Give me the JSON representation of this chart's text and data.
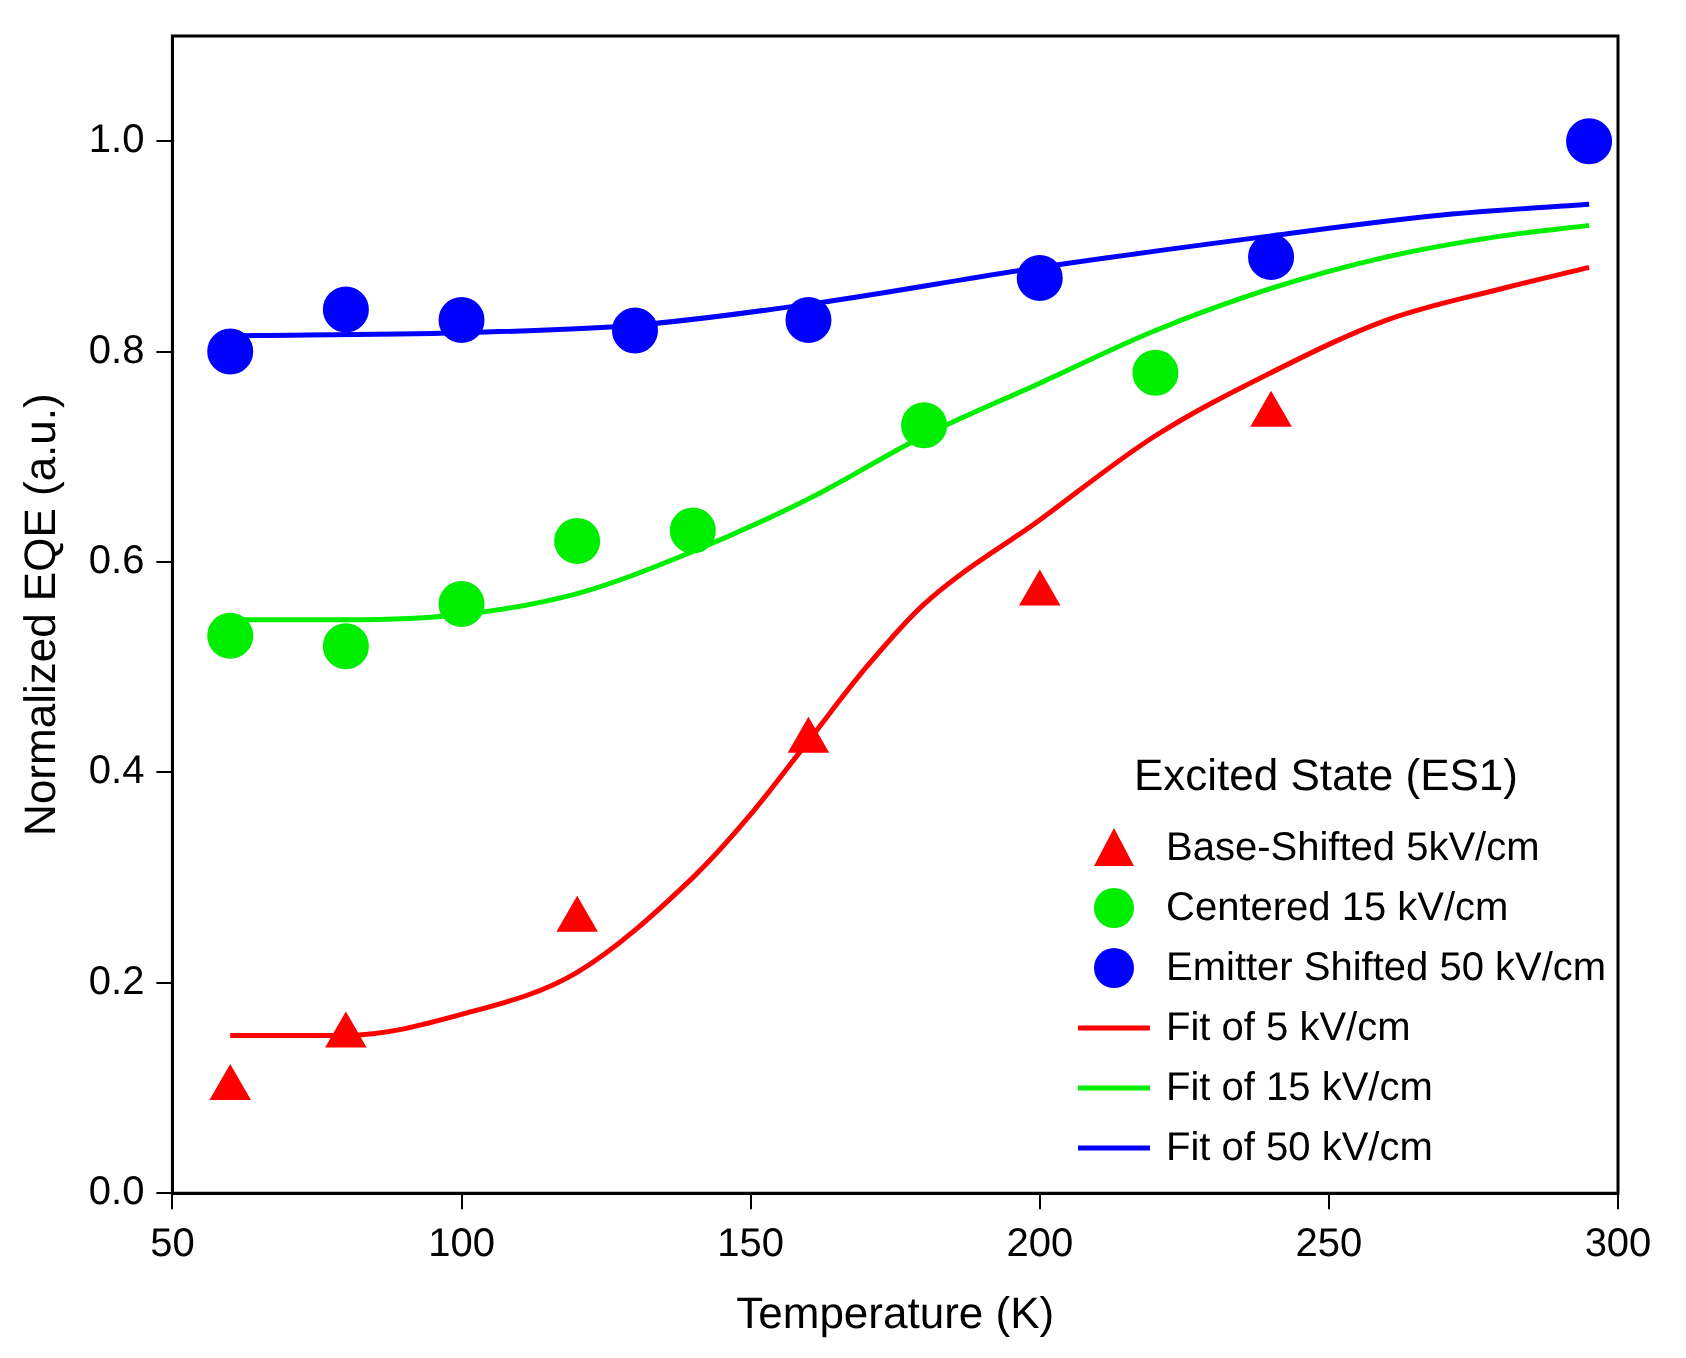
{
  "chart_data": {
    "type": "scatter",
    "xlabel": "Temperature (K)",
    "ylabel": "Normalized EQE (a.u.)",
    "legend_title": "Excited State (ES1)",
    "legend": "bottom right",
    "grid": false,
    "xlim": [
      50,
      300
    ],
    "xticks": [
      50,
      100,
      150,
      200,
      250,
      300
    ],
    "ylim": [
      0,
      1.1
    ],
    "yticks": [
      {
        "value": 0,
        "label": "0.0"
      },
      0.2,
      0.4,
      0.6,
      0.8,
      {
        "value": 1,
        "label": "1.0"
      }
    ],
    "series": [
      {
        "name": "Base-Shifted 5kV/cm",
        "type": "scatter",
        "marker": "triangle",
        "color": "#ff0000",
        "x": [
          60,
          80,
          120,
          160,
          200,
          240
        ],
        "values": [
          0.1,
          0.15,
          0.26,
          0.43,
          0.57,
          0.74
        ]
      },
      {
        "name": "Centered 15 kV/cm",
        "type": "scatter",
        "marker": "circle",
        "color": "#00ee00",
        "x": [
          60,
          80,
          100,
          120,
          140,
          180,
          220
        ],
        "values": [
          0.53,
          0.52,
          0.56,
          0.62,
          0.63,
          0.73,
          0.78
        ]
      },
      {
        "name": "Emitter Shifted 50 kV/cm",
        "type": "scatter",
        "marker": "circle",
        "color": "#0000ff",
        "x": [
          60,
          80,
          100,
          130,
          160,
          200,
          240,
          295
        ],
        "values": [
          0.8,
          0.84,
          0.83,
          0.82,
          0.83,
          0.87,
          0.89,
          1.0
        ]
      },
      {
        "name": "Fit of 5 kV/cm",
        "type": "line",
        "marker": "none",
        "line_style": "solid",
        "color": "#ff0000",
        "x": [
          60,
          80,
          100,
          120,
          140,
          150,
          160,
          170,
          180,
          200,
          220,
          240,
          260,
          280,
          295
        ],
        "values": [
          0.15,
          0.15,
          0.17,
          0.21,
          0.3,
          0.36,
          0.43,
          0.5,
          0.56,
          0.64,
          0.72,
          0.78,
          0.83,
          0.86,
          0.88
        ]
      },
      {
        "name": "Fit of 15 kV/cm",
        "type": "line",
        "marker": "none",
        "line_style": "solid",
        "color": "#00ee00",
        "x": [
          60,
          80,
          100,
          120,
          140,
          160,
          180,
          200,
          220,
          240,
          260,
          280,
          295
        ],
        "values": [
          0.545,
          0.545,
          0.55,
          0.57,
          0.61,
          0.66,
          0.72,
          0.77,
          0.82,
          0.86,
          0.89,
          0.91,
          0.92
        ]
      },
      {
        "name": "Fit of 50 kV/cm",
        "type": "line",
        "marker": "none",
        "line_style": "solid",
        "color": "#0000ff",
        "x": [
          60,
          100,
          130,
          160,
          200,
          240,
          270,
          295
        ],
        "values": [
          0.815,
          0.818,
          0.825,
          0.845,
          0.88,
          0.91,
          0.93,
          0.94
        ]
      }
    ]
  }
}
